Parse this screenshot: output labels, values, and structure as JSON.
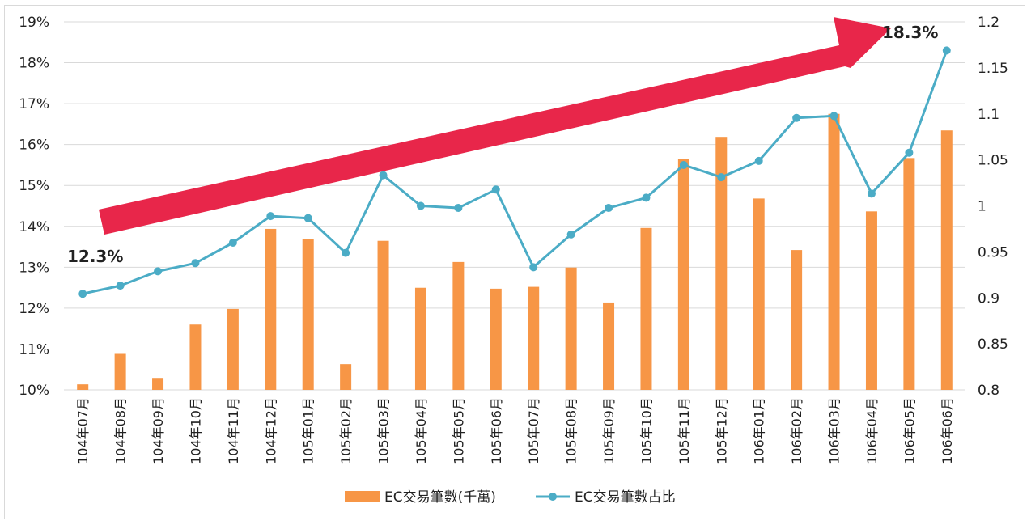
{
  "chart_data": {
    "type": "bar",
    "categories": [
      "104年07月",
      "104年08月",
      "104年09月",
      "104年10月",
      "104年11月",
      "104年12月",
      "105年01月",
      "105年02月",
      "105年03月",
      "105年04月",
      "105年05月",
      "105年06月",
      "105年07月",
      "105年08月",
      "105年09月",
      "105年10月",
      "105年11月",
      "105年12月",
      "106年01月",
      "106年02月",
      "106年03月",
      "106年04月",
      "106年05月",
      "106年06月"
    ],
    "series": [
      {
        "name": "EC交易筆數(千萬)",
        "type": "bar",
        "axis": "right",
        "color": "#f79646",
        "values": [
          0.806,
          0.84,
          0.813,
          0.871,
          0.888,
          0.975,
          0.964,
          0.828,
          0.962,
          0.911,
          0.939,
          0.91,
          0.912,
          0.933,
          0.895,
          0.976,
          1.051,
          1.075,
          1.008,
          0.952,
          1.1,
          0.994,
          1.052,
          1.082
        ]
      },
      {
        "name": "EC交易筆數占比",
        "type": "line",
        "axis": "left",
        "color": "#4bacc6",
        "values": [
          12.35,
          12.55,
          12.9,
          13.1,
          13.6,
          14.25,
          14.2,
          13.35,
          15.25,
          14.5,
          14.45,
          14.9,
          13.0,
          13.8,
          14.45,
          14.7,
          15.5,
          15.2,
          15.6,
          16.65,
          16.7,
          14.8,
          15.8,
          18.3
        ]
      }
    ],
    "y_left": {
      "ticks": [
        "10%",
        "11%",
        "12%",
        "13%",
        "14%",
        "15%",
        "16%",
        "17%",
        "18%",
        "19%"
      ],
      "ylim": [
        10,
        19
      ]
    },
    "y_right": {
      "ticks": [
        "0.8",
        "0.85",
        "0.9",
        "0.95",
        "1",
        "1.05",
        "1.1",
        "1.15",
        "1.2"
      ],
      "ylim": [
        0.8,
        1.2
      ]
    },
    "grid": true,
    "legend_position": "bottom",
    "annotations": [
      {
        "text": "12.3%",
        "at": "start"
      },
      {
        "text": "18.3%",
        "at": "end"
      }
    ],
    "trend_arrow": {
      "color": "#e8264a",
      "direction": "up-right"
    }
  }
}
